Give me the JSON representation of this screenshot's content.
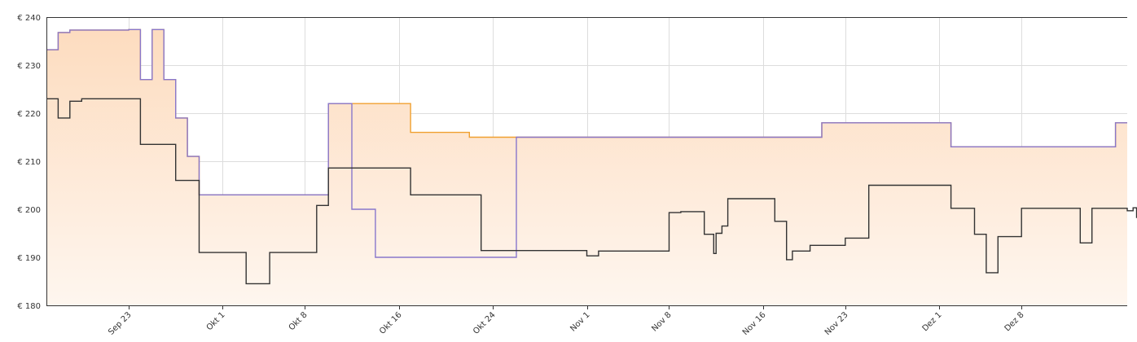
{
  "chart_data": {
    "type": "line",
    "title": "",
    "xlabel": "",
    "ylabel": "",
    "ylim": [
      180,
      240
    ],
    "y_ticks": [
      180,
      190,
      200,
      210,
      220,
      230,
      240
    ],
    "y_tick_labels": [
      "€ 180",
      "€ 190",
      "€ 200",
      "€ 210",
      "€ 220",
      "€ 230",
      "€ 240"
    ],
    "x_range": [
      "2020-09-16",
      "2020-12-17"
    ],
    "x_ticks": [
      {
        "date": "2020-09-23",
        "label": "Sep 23"
      },
      {
        "date": "2020-10-01",
        "label": "Okt 1"
      },
      {
        "date": "2020-10-08",
        "label": "Okt 8"
      },
      {
        "date": "2020-10-16",
        "label": "Okt 16"
      },
      {
        "date": "2020-10-24",
        "label": "Okt 24"
      },
      {
        "date": "2020-11-01",
        "label": "Nov 1"
      },
      {
        "date": "2020-11-08",
        "label": "Nov 8"
      },
      {
        "date": "2020-11-16",
        "label": "Nov 16"
      },
      {
        "date": "2020-11-23",
        "label": "Nov 23"
      },
      {
        "date": "2020-12-01",
        "label": "Dez 1"
      },
      {
        "date": "2020-12-08",
        "label": "Dez 8"
      }
    ],
    "grid": true,
    "step": true,
    "colors": {
      "orange": "#f0a030",
      "purple": "#8877cc",
      "black": "#333333",
      "fill_top": "#fddcbf",
      "fill_bottom": "#fef6ef",
      "grid": "#dddddd",
      "axis": "#333333"
    },
    "series": [
      {
        "color": "orange",
        "area": true,
        "points": [
          [
            "2020-09-16",
            233.2
          ],
          [
            "2020-09-17",
            236.8
          ],
          [
            "2020-09-18",
            237.3
          ],
          [
            "2020-09-23",
            237.4
          ],
          [
            "2020-09-24",
            227.0
          ],
          [
            "2020-09-25",
            237.4
          ],
          [
            "2020-09-26",
            227.0
          ],
          [
            "2020-09-27",
            219.0
          ],
          [
            "2020-09-28",
            211.0
          ],
          [
            "2020-09-29",
            203.0
          ],
          [
            "2020-10-10",
            222.0
          ],
          [
            "2020-10-17",
            216.0
          ],
          [
            "2020-10-22",
            215.0
          ],
          [
            "2020-10-26",
            215.0
          ],
          [
            "2020-11-21",
            218.0
          ],
          [
            "2020-12-02",
            213.0
          ],
          [
            "2020-12-16",
            218.0
          ],
          [
            "2020-12-17",
            218.0
          ]
        ]
      },
      {
        "color": "purple",
        "area": false,
        "points": [
          [
            "2020-09-16",
            233.2
          ],
          [
            "2020-09-17",
            236.8
          ],
          [
            "2020-09-18",
            237.3
          ],
          [
            "2020-09-23",
            237.4
          ],
          [
            "2020-09-24",
            227.0
          ],
          [
            "2020-09-25",
            237.4
          ],
          [
            "2020-09-26",
            227.0
          ],
          [
            "2020-09-27",
            219.0
          ],
          [
            "2020-09-28",
            211.0
          ],
          [
            "2020-09-29",
            203.0
          ],
          [
            "2020-10-10",
            222.0
          ],
          [
            "2020-10-12",
            200.0
          ],
          [
            "2020-10-14",
            190.0
          ],
          [
            "2020-10-26",
            215.0
          ],
          [
            "2020-11-21",
            218.0
          ],
          [
            "2020-12-02",
            213.0
          ],
          [
            "2020-12-16",
            218.0
          ],
          [
            "2020-12-17",
            218.0
          ]
        ]
      },
      {
        "color": "black",
        "area": false,
        "points": [
          [
            "2020-09-16",
            223.0
          ],
          [
            "2020-09-17",
            219.0
          ],
          [
            "2020-09-18",
            222.5
          ],
          [
            "2020-09-19",
            223.0
          ],
          [
            "2020-09-24",
            213.5
          ],
          [
            "2020-09-27",
            206.0
          ],
          [
            "2020-09-29",
            191.0
          ],
          [
            "2020-10-03",
            184.5
          ],
          [
            "2020-10-05",
            191.0
          ],
          [
            "2020-10-09",
            200.8
          ],
          [
            "2020-10-10",
            208.6
          ],
          [
            "2020-10-17",
            203.0
          ],
          [
            "2020-10-23",
            191.4
          ],
          [
            "2020-11-01",
            190.3
          ],
          [
            "2020-11-02",
            191.3
          ],
          [
            "2020-11-08",
            199.3
          ],
          [
            "2020-11-09",
            199.5
          ],
          [
            "2020-11-11",
            194.8
          ],
          [
            "2020-11-11.8",
            190.8
          ],
          [
            "2020-11-12",
            195.0
          ],
          [
            "2020-11-12.5",
            196.5
          ],
          [
            "2020-11-13",
            202.2
          ],
          [
            "2020-11-17",
            197.5
          ],
          [
            "2020-11-18",
            189.5
          ],
          [
            "2020-11-18.5",
            191.3
          ],
          [
            "2020-11-20",
            192.5
          ],
          [
            "2020-11-23",
            194.0
          ],
          [
            "2020-11-25",
            205.0
          ],
          [
            "2020-12-02",
            200.2
          ],
          [
            "2020-12-04",
            194.8
          ],
          [
            "2020-12-05",
            186.8
          ],
          [
            "2020-12-06",
            194.3
          ],
          [
            "2020-12-08",
            200.2
          ],
          [
            "2020-12-13",
            193.0
          ],
          [
            "2020-12-14",
            200.2
          ],
          [
            "2020-12-17",
            199.7
          ],
          [
            "2020-12-17.5",
            200.3
          ],
          [
            "2020-12-17.8",
            198.3
          ],
          [
            "2020-12-18",
            193.5
          ],
          [
            "2020-12-18.5",
            193.3
          ]
        ]
      }
    ]
  }
}
